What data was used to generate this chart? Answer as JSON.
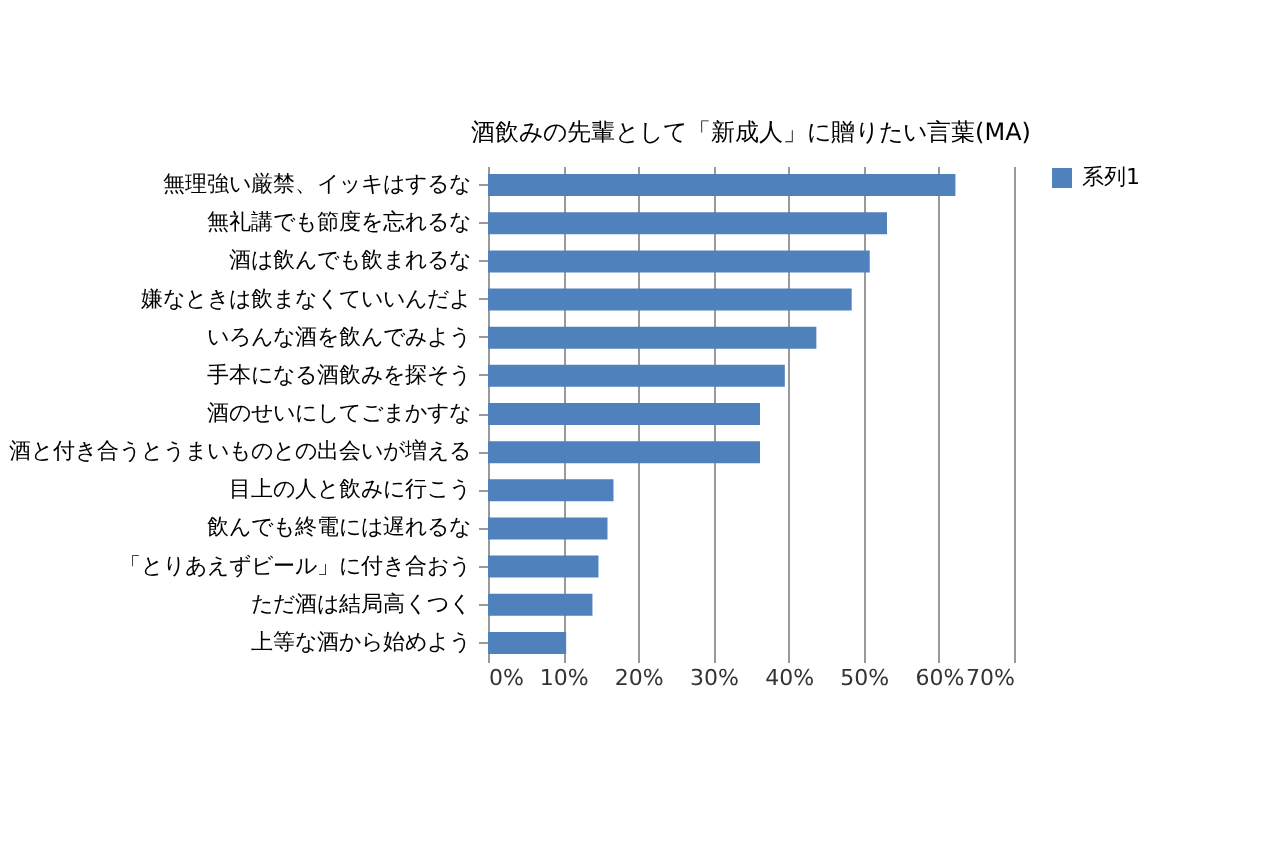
{
  "chart_data": {
    "type": "bar",
    "orientation": "horizontal",
    "title": "酒飲みの先輩として「新成人」に贈りたい言葉(MA)",
    "categories": [
      "無理強い厳禁、イッキはするな",
      "無礼講でも節度を忘れるな",
      "酒は飲んでも飲まれるな",
      "嫌なときは飲まなくていいんだよ",
      "いろんな酒を飲んでみよう",
      "手本になる酒飲みを探そう",
      "酒のせいにしてごまかすな",
      "酒と付き合うとうまいものとの出会いが増える",
      "目上の人と飲みに行こう",
      "飲んでも終電には遅れるな",
      "「とりあえずビール」に付き合おう",
      "ただ酒は結局高くつく",
      "上等な酒から始めよう"
    ],
    "series": [
      {
        "name": "系列1",
        "color": "#4f81bd",
        "values": [
          62.2,
          53.1,
          50.8,
          48.4,
          43.7,
          39.5,
          36.2,
          36.2,
          16.7,
          15.9,
          14.7,
          13.9,
          10.4
        ]
      }
    ],
    "xlim": [
      0,
      70
    ],
    "xticks": [
      {
        "value": 0,
        "label": "0%"
      },
      {
        "value": 10,
        "label": "10%"
      },
      {
        "value": 20,
        "label": "20%"
      },
      {
        "value": 30,
        "label": "30%"
      },
      {
        "value": 40,
        "label": "40%"
      },
      {
        "value": 50,
        "label": "50%"
      },
      {
        "value": 60,
        "label": "60%"
      },
      {
        "value": 70,
        "label": "70%"
      }
    ],
    "grid": "x",
    "legend": "right"
  }
}
